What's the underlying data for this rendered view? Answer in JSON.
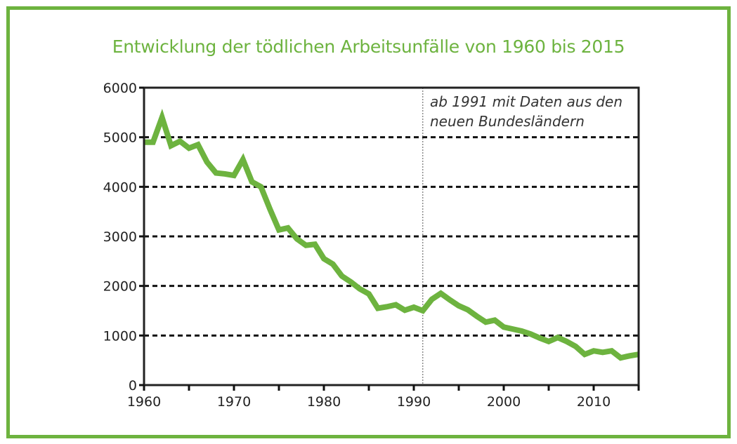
{
  "chart_data": {
    "type": "line",
    "title": "Entwicklung der tödlichen Arbeitsunfälle von 1960 bis 2015",
    "xlabel": "",
    "ylabel": "",
    "xlim": [
      1960,
      2015
    ],
    "ylim": [
      0,
      6000
    ],
    "xticks": [
      1960,
      1970,
      1980,
      1990,
      2000,
      2010
    ],
    "yticks": [
      0,
      1000,
      2000,
      3000,
      4000,
      5000,
      6000
    ],
    "grid": "horizontal dotted",
    "annotation": {
      "x": 1991,
      "lines": [
        "ab 1991 mit Daten aus den",
        "neuen Bundesländern"
      ]
    },
    "series": [
      {
        "name": "Tödliche Arbeitsunfälle",
        "color": "#6db33f",
        "x": [
          1960,
          1961,
          1962,
          1963,
          1964,
          1965,
          1966,
          1967,
          1968,
          1969,
          1970,
          1971,
          1972,
          1973,
          1974,
          1975,
          1976,
          1977,
          1978,
          1979,
          1980,
          1981,
          1982,
          1983,
          1984,
          1985,
          1986,
          1987,
          1988,
          1989,
          1990,
          1991,
          1992,
          1993,
          1994,
          1995,
          1996,
          1997,
          1998,
          1999,
          2000,
          2001,
          2002,
          2003,
          2004,
          2005,
          2006,
          2007,
          2008,
          2009,
          2010,
          2011,
          2012,
          2013,
          2014,
          2015
        ],
        "values": [
          4900,
          4900,
          5400,
          4830,
          4920,
          4780,
          4850,
          4500,
          4280,
          4260,
          4230,
          4550,
          4100,
          4000,
          3550,
          3130,
          3170,
          2950,
          2820,
          2840,
          2550,
          2440,
          2200,
          2080,
          1940,
          1840,
          1550,
          1580,
          1620,
          1510,
          1570,
          1500,
          1730,
          1850,
          1720,
          1600,
          1520,
          1390,
          1270,
          1310,
          1170,
          1130,
          1090,
          1030,
          950,
          880,
          960,
          880,
          780,
          620,
          690,
          660,
          690,
          550,
          590,
          620
        ]
      }
    ]
  }
}
